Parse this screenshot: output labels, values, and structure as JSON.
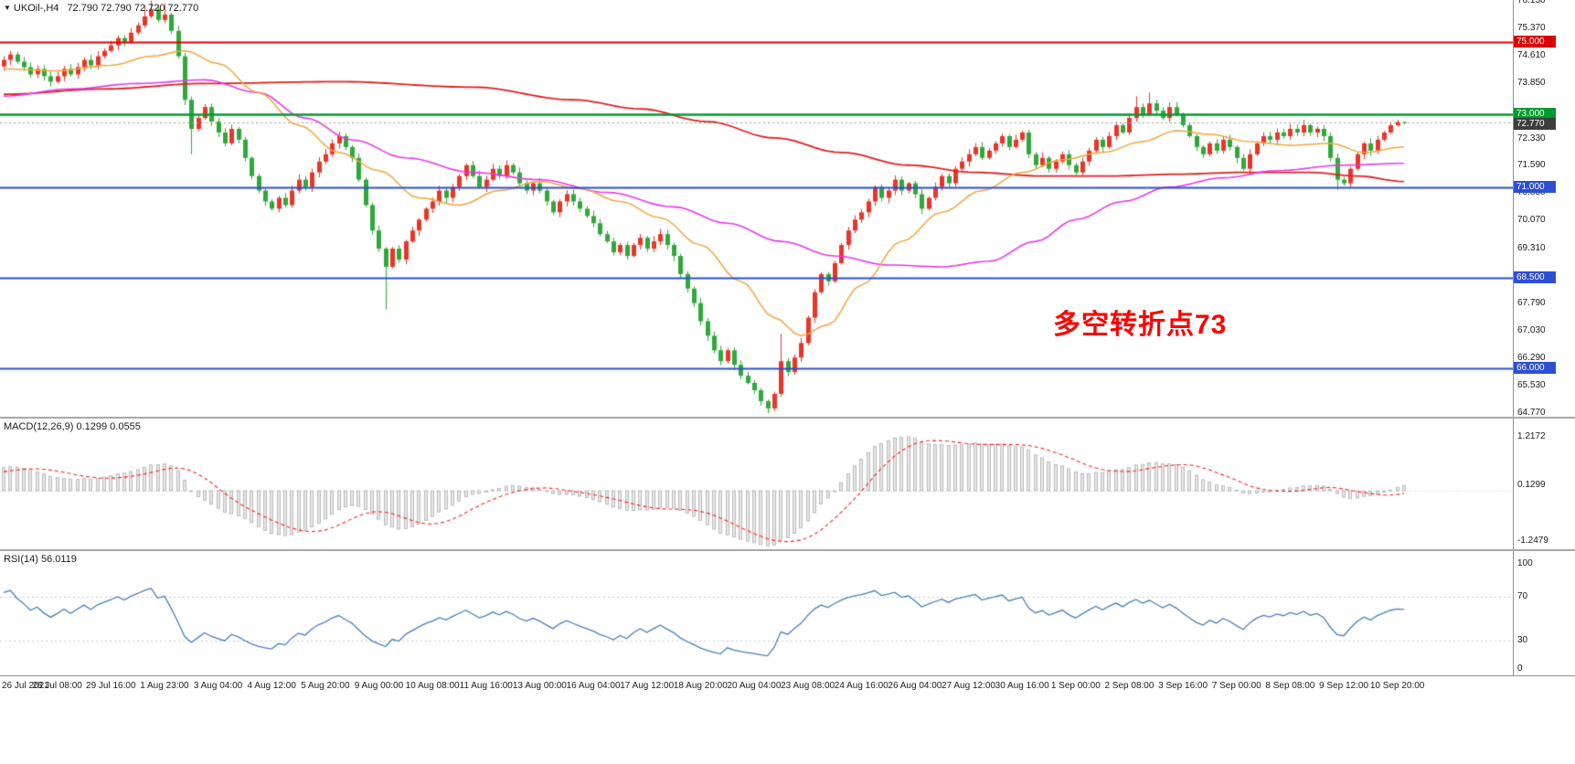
{
  "title": {
    "marker": "▼",
    "symbol_period": "UKOil-,H4",
    "ohlc": "72.790 72.790 72.720 72.770"
  },
  "chart_data": {
    "type": "candlestick",
    "symbol": "UKOil-",
    "timeframe": "H4",
    "last_candle": {
      "open": 72.79,
      "high": 72.79,
      "low": 72.72,
      "close": 72.77
    },
    "ylim": [
      64.5,
      76.15
    ],
    "first_open": 74.32,
    "label_step": 8,
    "x_labels": [
      "26 Jul 2021",
      "28 Jul 08:00",
      "29 Jul 16:00",
      "1 Aug 23:00",
      "3 Aug 04:00",
      "4 Aug 12:00",
      "5 Aug 20:00",
      "9 Aug 00:00",
      "10 Aug 08:00",
      "11 Aug 16:00",
      "13 Aug 00:00",
      "16 Aug 04:00",
      "17 Aug 12:00",
      "18 Aug 20:00",
      "20 Aug 04:00",
      "23 Aug 08:00",
      "24 Aug 16:00",
      "26 Aug 04:00",
      "27 Aug 12:00",
      "30 Aug 16:00",
      "1 Sep 00:00",
      "2 Sep 08:00",
      "3 Sep 16:00",
      "7 Sep 00:00",
      "8 Sep 08:00",
      "9 Sep 12:00",
      "10 Sep 20:00"
    ],
    "closes": [
      74.5,
      74.65,
      74.45,
      74.3,
      74.1,
      74.25,
      74.05,
      73.9,
      74.05,
      74.25,
      74.1,
      74.3,
      74.5,
      74.35,
      74.6,
      74.75,
      74.9,
      75.1,
      75.0,
      75.25,
      75.45,
      75.7,
      75.9,
      75.6,
      75.75,
      75.3,
      74.6,
      73.4,
      72.6,
      72.9,
      73.2,
      72.8,
      72.5,
      72.2,
      72.6,
      72.3,
      71.8,
      71.3,
      70.9,
      70.6,
      70.4,
      70.7,
      70.5,
      70.9,
      71.2,
      71.0,
      71.4,
      71.7,
      71.9,
      72.2,
      72.4,
      72.1,
      71.8,
      71.2,
      70.5,
      69.8,
      69.3,
      68.8,
      69.3,
      69.0,
      69.5,
      69.8,
      70.1,
      70.4,
      70.6,
      70.9,
      70.7,
      71.0,
      71.3,
      71.6,
      71.3,
      71.0,
      71.2,
      71.5,
      71.3,
      71.6,
      71.4,
      71.1,
      70.9,
      71.1,
      70.9,
      70.6,
      70.3,
      70.6,
      70.8,
      70.6,
      70.4,
      70.2,
      70.0,
      69.7,
      69.5,
      69.2,
      69.4,
      69.1,
      69.4,
      69.6,
      69.3,
      69.5,
      69.7,
      69.4,
      69.1,
      68.6,
      68.2,
      67.8,
      67.3,
      66.9,
      66.5,
      66.2,
      66.5,
      66.1,
      65.8,
      65.6,
      65.4,
      65.1,
      64.9,
      65.3,
      66.2,
      65.9,
      66.3,
      66.7,
      67.4,
      68.1,
      68.6,
      68.4,
      68.9,
      69.4,
      69.8,
      70.1,
      70.3,
      70.6,
      71.0,
      70.7,
      70.9,
      71.2,
      70.9,
      71.1,
      70.8,
      70.4,
      70.7,
      71.0,
      71.3,
      71.1,
      71.5,
      71.7,
      71.9,
      72.1,
      71.8,
      72.0,
      72.2,
      72.4,
      72.1,
      72.3,
      72.5,
      71.9,
      71.6,
      71.8,
      71.5,
      71.7,
      71.9,
      71.6,
      71.4,
      71.7,
      72.0,
      72.3,
      72.1,
      72.4,
      72.7,
      72.5,
      72.9,
      73.2,
      73.0,
      73.3,
      73.1,
      72.9,
      73.2,
      73.0,
      72.7,
      72.4,
      72.1,
      71.9,
      72.2,
      72.0,
      72.3,
      72.1,
      71.8,
      71.5,
      71.9,
      72.2,
      72.4,
      72.3,
      72.5,
      72.4,
      72.6,
      72.5,
      72.7,
      72.5,
      72.6,
      72.4,
      71.8,
      71.2,
      71.1,
      71.5,
      71.9,
      72.2,
      72.0,
      72.3,
      72.5,
      72.7,
      72.79,
      72.77
    ],
    "wick_overrides": {
      "21": {
        "h": 76.0
      },
      "22": {
        "h": 76.13
      },
      "24": {
        "h": 76.05
      },
      "28": {
        "l": 71.9
      },
      "57": {
        "l": 67.62
      },
      "114": {
        "l": 64.77
      },
      "116": {
        "h": 66.95
      },
      "169": {
        "h": 73.5
      },
      "171": {
        "h": 73.6
      },
      "199": {
        "l": 70.92
      },
      "209": {
        "h": 72.79,
        "l": 72.72
      }
    },
    "candle_colors": {
      "up": "#e9352a",
      "down": "#2fa93a"
    },
    "price_axis": {
      "ticks": [
        "76.130",
        "75.370",
        "74.610",
        "73.850",
        "72.330",
        "71.590",
        "70.830",
        "70.070",
        "69.310",
        "67.790",
        "67.030",
        "66.290",
        "65.530",
        "64.770"
      ]
    },
    "hlines": [
      {
        "price": 75.0,
        "label": "75.000",
        "color": "#dd0000",
        "width": 2
      },
      {
        "price": 73.0,
        "label": "73.000",
        "color": "#009b2f",
        "width": 2.5
      },
      {
        "price": 71.0,
        "label": "71.000",
        "color": "#2d4fd2",
        "width": 2
      },
      {
        "price": 68.5,
        "label": "68.500",
        "color": "#2d4fd2",
        "width": 2
      },
      {
        "price": 66.0,
        "label": "66.000",
        "color": "#2d4fd2",
        "width": 2
      }
    ],
    "current_price": {
      "value": 72.77,
      "label": "72.770",
      "line_color": "#999999",
      "badge_color": "#3d3d3d"
    },
    "moving_averages": [
      {
        "name": "ma-slow",
        "color": "#e02020",
        "width": 1.8,
        "points": [
          [
            0,
            73.55
          ],
          [
            15,
            73.7
          ],
          [
            30,
            73.85
          ],
          [
            50,
            73.9
          ],
          [
            70,
            73.75
          ],
          [
            85,
            73.4
          ],
          [
            95,
            73.15
          ],
          [
            105,
            72.8
          ],
          [
            115,
            72.35
          ],
          [
            125,
            71.95
          ],
          [
            135,
            71.6
          ],
          [
            145,
            71.4
          ],
          [
            155,
            71.3
          ],
          [
            165,
            71.3
          ],
          [
            175,
            71.35
          ],
          [
            185,
            71.4
          ],
          [
            195,
            71.4
          ],
          [
            202,
            71.3
          ],
          [
            209,
            71.15
          ]
        ]
      },
      {
        "name": "ma-medium",
        "color": "#e838e8",
        "width": 1.6,
        "points": [
          [
            0,
            73.5
          ],
          [
            10,
            73.7
          ],
          [
            20,
            73.85
          ],
          [
            30,
            73.95
          ],
          [
            38,
            73.6
          ],
          [
            45,
            72.9
          ],
          [
            52,
            72.3
          ],
          [
            60,
            71.8
          ],
          [
            70,
            71.4
          ],
          [
            80,
            71.2
          ],
          [
            90,
            70.85
          ],
          [
            100,
            70.45
          ],
          [
            108,
            70.0
          ],
          [
            116,
            69.5
          ],
          [
            124,
            69.1
          ],
          [
            132,
            68.85
          ],
          [
            140,
            68.8
          ],
          [
            147,
            68.95
          ],
          [
            154,
            69.5
          ],
          [
            160,
            70.1
          ],
          [
            167,
            70.6
          ],
          [
            174,
            71.0
          ],
          [
            182,
            71.25
          ],
          [
            190,
            71.45
          ],
          [
            200,
            71.6
          ],
          [
            209,
            71.65
          ]
        ]
      },
      {
        "name": "ma-fast",
        "color": "#f2a53c",
        "width": 1.5,
        "points": [
          [
            0,
            74.25
          ],
          [
            8,
            74.2
          ],
          [
            16,
            74.35
          ],
          [
            22,
            74.6
          ],
          [
            27,
            74.75
          ],
          [
            32,
            74.4
          ],
          [
            38,
            73.6
          ],
          [
            44,
            72.7
          ],
          [
            50,
            71.95
          ],
          [
            56,
            71.45
          ],
          [
            62,
            70.7
          ],
          [
            68,
            70.5
          ],
          [
            74,
            70.9
          ],
          [
            80,
            71.15
          ],
          [
            86,
            70.95
          ],
          [
            92,
            70.6
          ],
          [
            98,
            70.15
          ],
          [
            104,
            69.4
          ],
          [
            110,
            68.4
          ],
          [
            115,
            67.4
          ],
          [
            119,
            66.9
          ],
          [
            123,
            67.2
          ],
          [
            128,
            68.3
          ],
          [
            134,
            69.5
          ],
          [
            140,
            70.3
          ],
          [
            146,
            70.9
          ],
          [
            152,
            71.4
          ],
          [
            158,
            71.75
          ],
          [
            164,
            71.95
          ],
          [
            170,
            72.25
          ],
          [
            175,
            72.55
          ],
          [
            180,
            72.45
          ],
          [
            186,
            72.25
          ],
          [
            192,
            72.15
          ],
          [
            198,
            72.2
          ],
          [
            203,
            71.95
          ],
          [
            209,
            72.1
          ]
        ]
      }
    ],
    "indicators": [
      {
        "name": "MACD",
        "header": "MACD(12,26,9) 0.1299 0.0555",
        "fast": 12,
        "slow": 26,
        "signal_period": 9,
        "value": 0.1299,
        "signal_value": 0.0555,
        "axis_max": 1.2172,
        "axis_min": -1.2479,
        "axis": [
          {
            "t": "1.2172",
            "v": 1.2172
          },
          {
            "t": "0.1299",
            "v": 0.1299
          },
          {
            "t": "-1.2479",
            "v": -1.2479
          }
        ],
        "hist_fill": "#e6e6e6",
        "hist_border": "#b0b0b0",
        "signal_color": "#ff2222"
      },
      {
        "name": "RSI",
        "header": "RSI(14) 56.0119",
        "period": 14,
        "value": 56.0119,
        "levels": [
          100,
          70,
          30,
          0
        ],
        "line_color": "#4a7ebb",
        "level_color": "#c0c8d8"
      }
    ],
    "annotation": {
      "text": "多空转折点73",
      "color": "#ff0000"
    }
  }
}
